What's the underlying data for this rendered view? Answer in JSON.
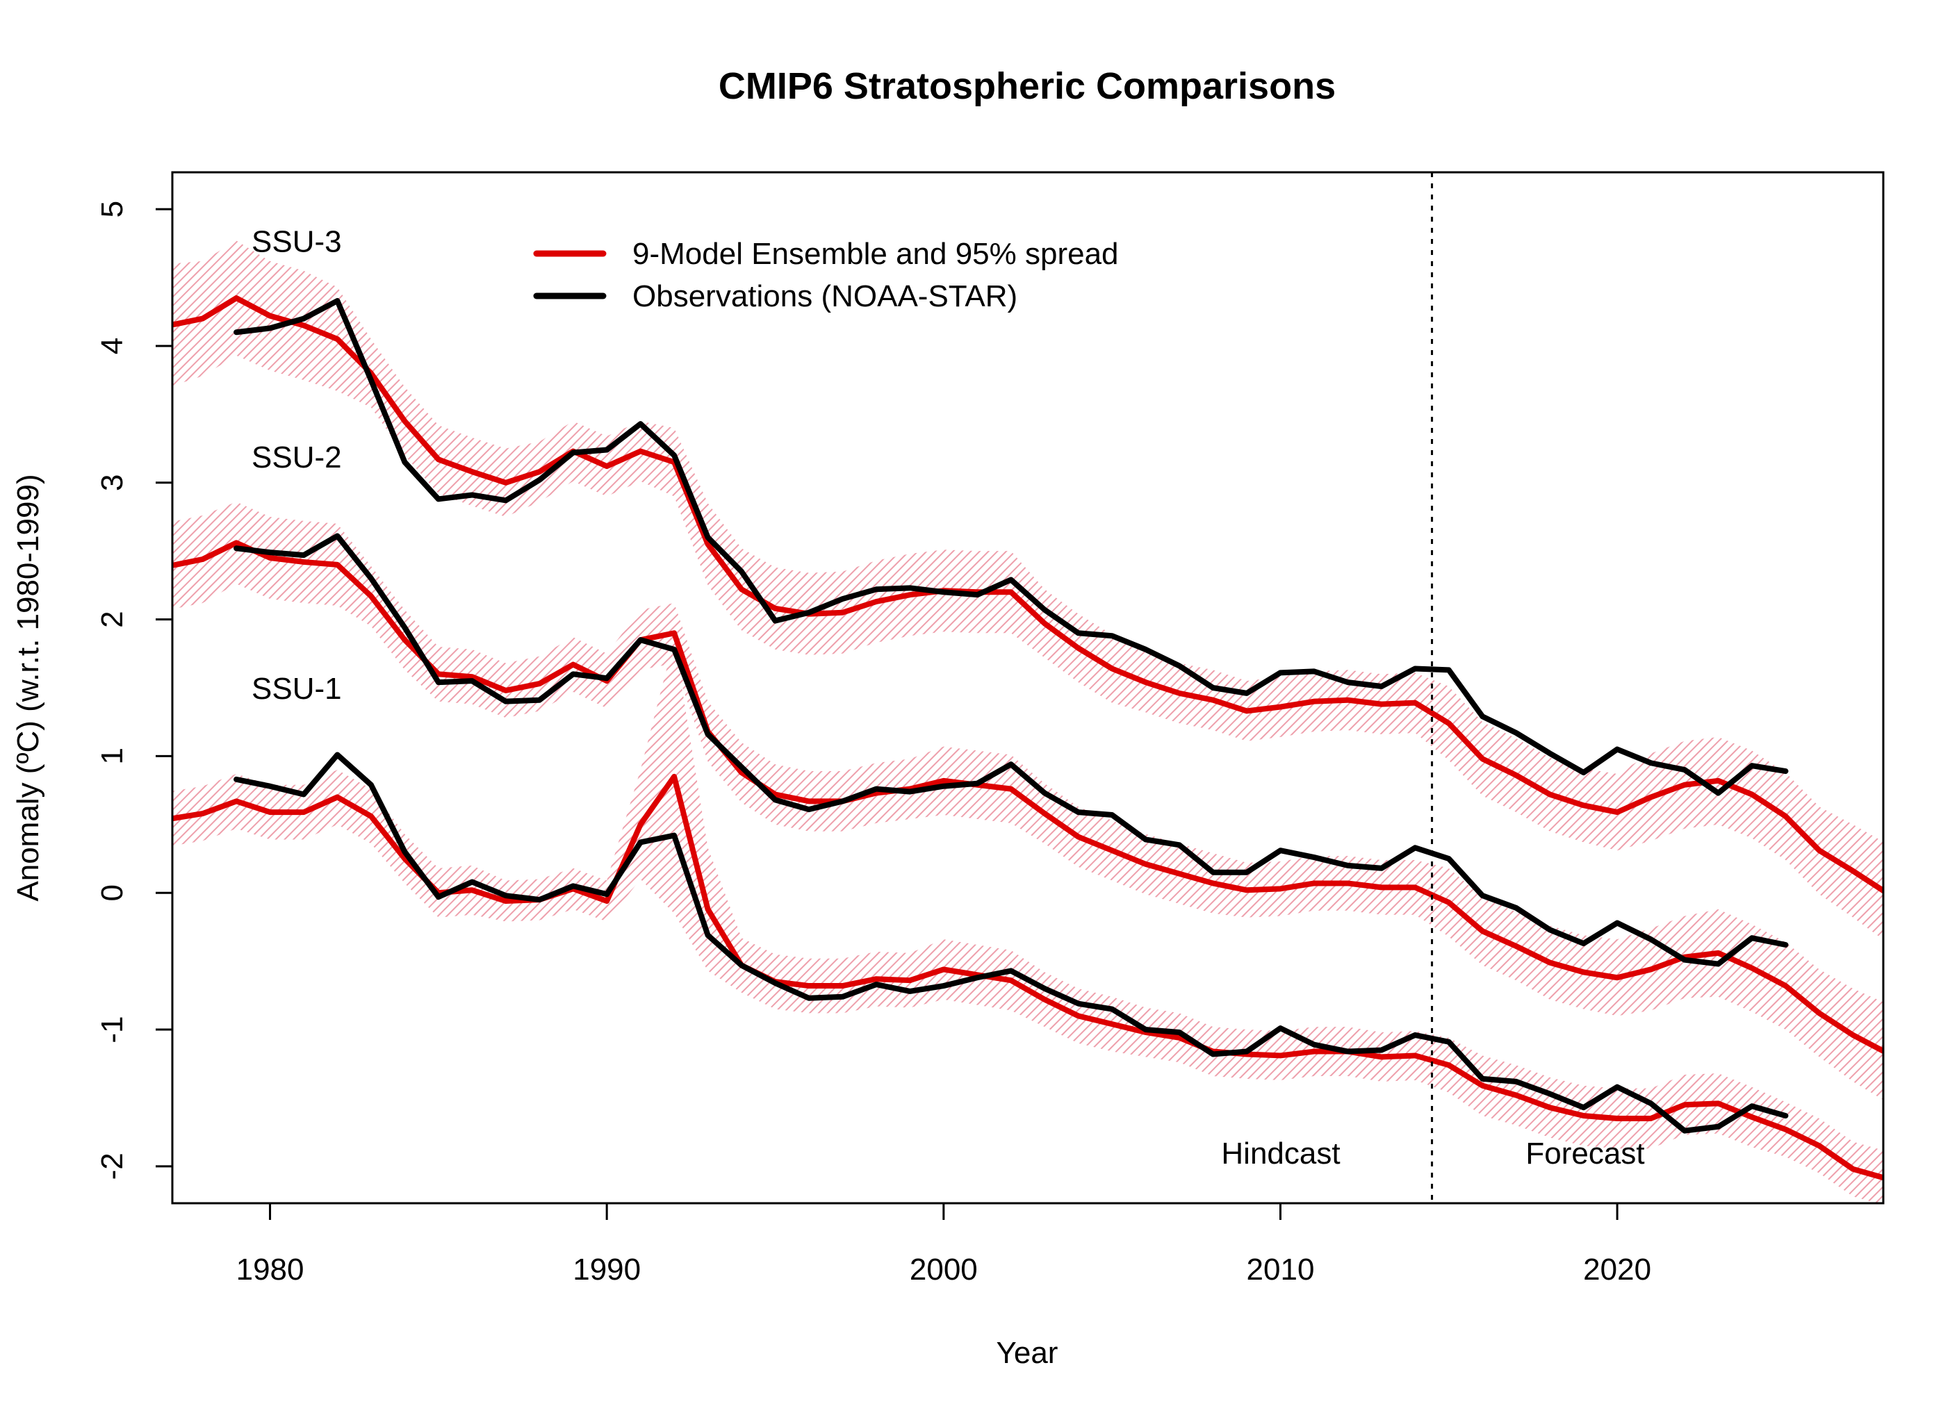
{
  "chart_data": {
    "type": "line",
    "title": "CMIP6 Stratospheric Comparisons",
    "xlabel": "Year",
    "ylabel": "Anomaly (ºC) (w.r.t. 1980-1999)",
    "xlim": [
      1977.1,
      2027.9
    ],
    "ylim": [
      -2.27,
      5.27
    ],
    "x_ticks": [
      1980,
      1990,
      2000,
      2010,
      2020
    ],
    "x_tick_labels": [
      "1980",
      "1990",
      "2000",
      "2010",
      "2020"
    ],
    "y_ticks": [
      -2,
      -1,
      0,
      1,
      2,
      3,
      4,
      5
    ],
    "y_tick_labels": [
      "-2",
      "-1",
      "0",
      "1",
      "2",
      "3",
      "4",
      "5"
    ],
    "grid": false,
    "legend_position": "top-left",
    "legend": [
      {
        "label": "9-Model Ensemble and 95% spread",
        "color": "#dd0000"
      },
      {
        "label": "Observations (NOAA-STAR)",
        "color": "#000000"
      }
    ],
    "colors": {
      "model": "#dd0000",
      "observations": "#000000",
      "spread": "#f2a5b0"
    },
    "divider_year": 2014.5,
    "annotations": {
      "hindcast": "Hindcast",
      "forecast": "Forecast"
    },
    "model_years_start": 1977,
    "obs_years_start": 1979,
    "series": [
      {
        "name": "SSU-3",
        "model": [
          4.15,
          4.2,
          4.35,
          4.22,
          4.15,
          4.05,
          3.8,
          3.45,
          3.17,
          3.08,
          3.0,
          3.08,
          3.23,
          3.12,
          3.23,
          3.15,
          2.55,
          2.22,
          2.08,
          2.04,
          2.05,
          2.13,
          2.18,
          2.21,
          2.2,
          2.2,
          1.97,
          1.79,
          1.64,
          1.54,
          1.46,
          1.41,
          1.33,
          1.36,
          1.4,
          1.41,
          1.38,
          1.39,
          1.24,
          0.98,
          0.86,
          0.72,
          0.64,
          0.59,
          0.7,
          0.79,
          0.82,
          0.72,
          0.56,
          0.31,
          0.16,
          0.0
        ],
        "spread_halfwidth": [
          0.45,
          0.42,
          0.42,
          0.4,
          0.4,
          0.38,
          0.25,
          0.25,
          0.25,
          0.25,
          0.25,
          0.22,
          0.22,
          0.22,
          0.22,
          0.25,
          0.3,
          0.3,
          0.3,
          0.3,
          0.3,
          0.3,
          0.3,
          0.3,
          0.3,
          0.3,
          0.25,
          0.25,
          0.25,
          0.22,
          0.22,
          0.22,
          0.22,
          0.22,
          0.22,
          0.22,
          0.22,
          0.22,
          0.27,
          0.27,
          0.27,
          0.27,
          0.27,
          0.28,
          0.32,
          0.32,
          0.32,
          0.32,
          0.32,
          0.32,
          0.34,
          0.36
        ],
        "observations": [
          4.1,
          4.13,
          4.2,
          4.33,
          3.75,
          3.15,
          2.88,
          2.91,
          2.87,
          3.02,
          3.22,
          3.24,
          3.43,
          3.2,
          2.6,
          2.35,
          1.99,
          2.05,
          2.15,
          2.22,
          2.23,
          2.2,
          2.18,
          2.29,
          2.07,
          1.9,
          1.88,
          1.78,
          1.66,
          1.5,
          1.46,
          1.61,
          1.62,
          1.54,
          1.51,
          1.64,
          1.63,
          1.29,
          1.17,
          1.02,
          0.88,
          1.05,
          0.95,
          0.9,
          0.73,
          0.93,
          0.89
        ]
      },
      {
        "name": "SSU-2",
        "model": [
          2.39,
          2.44,
          2.56,
          2.45,
          2.42,
          2.4,
          2.17,
          1.85,
          1.6,
          1.58,
          1.48,
          1.53,
          1.67,
          1.55,
          1.85,
          1.9,
          1.18,
          0.88,
          0.72,
          0.67,
          0.67,
          0.73,
          0.76,
          0.82,
          0.79,
          0.76,
          0.58,
          0.41,
          0.31,
          0.21,
          0.14,
          0.07,
          0.02,
          0.03,
          0.07,
          0.07,
          0.04,
          0.04,
          -0.07,
          -0.28,
          -0.39,
          -0.51,
          -0.58,
          -0.62,
          -0.56,
          -0.47,
          -0.44,
          -0.55,
          -0.68,
          -0.88,
          -1.04,
          -1.17
        ],
        "spread_halfwidth": [
          0.32,
          0.32,
          0.3,
          0.3,
          0.3,
          0.3,
          0.22,
          0.22,
          0.2,
          0.2,
          0.2,
          0.2,
          0.2,
          0.2,
          0.22,
          0.22,
          0.22,
          0.22,
          0.22,
          0.22,
          0.22,
          0.22,
          0.22,
          0.25,
          0.25,
          0.25,
          0.22,
          0.22,
          0.22,
          0.22,
          0.22,
          0.22,
          0.2,
          0.2,
          0.2,
          0.2,
          0.2,
          0.2,
          0.25,
          0.25,
          0.25,
          0.27,
          0.27,
          0.28,
          0.3,
          0.3,
          0.32,
          0.32,
          0.32,
          0.32,
          0.34,
          0.36
        ],
        "observations": [
          2.52,
          2.49,
          2.47,
          2.61,
          2.3,
          1.94,
          1.54,
          1.55,
          1.4,
          1.41,
          1.6,
          1.57,
          1.85,
          1.78,
          1.16,
          0.92,
          0.68,
          0.61,
          0.67,
          0.76,
          0.74,
          0.78,
          0.8,
          0.94,
          0.73,
          0.59,
          0.57,
          0.39,
          0.35,
          0.15,
          0.15,
          0.31,
          0.26,
          0.2,
          0.18,
          0.33,
          0.25,
          -0.02,
          -0.11,
          -0.27,
          -0.37,
          -0.22,
          -0.34,
          -0.49,
          -0.52,
          -0.33,
          -0.38
        ]
      },
      {
        "name": "SSU-1",
        "model": [
          0.54,
          0.58,
          0.67,
          0.59,
          0.59,
          0.7,
          0.56,
          0.25,
          0.0,
          0.02,
          -0.06,
          -0.05,
          0.03,
          -0.06,
          0.5,
          0.85,
          -0.12,
          -0.53,
          -0.65,
          -0.68,
          -0.68,
          -0.63,
          -0.64,
          -0.56,
          -0.6,
          -0.64,
          -0.78,
          -0.9,
          -0.96,
          -1.02,
          -1.06,
          -1.16,
          -1.18,
          -1.19,
          -1.16,
          -1.16,
          -1.2,
          -1.19,
          -1.26,
          -1.41,
          -1.48,
          -1.57,
          -1.63,
          -1.65,
          -1.65,
          -1.55,
          -1.54,
          -1.64,
          -1.73,
          -1.85,
          -2.02,
          -2.09
        ],
        "spread_halfwidth": [
          0.2,
          0.2,
          0.2,
          0.2,
          0.2,
          0.2,
          0.2,
          0.18,
          0.18,
          0.18,
          0.15,
          0.15,
          0.15,
          0.15,
          0.4,
          1.0,
          0.45,
          0.2,
          0.2,
          0.2,
          0.2,
          0.2,
          0.2,
          0.22,
          0.22,
          0.22,
          0.2,
          0.2,
          0.2,
          0.18,
          0.18,
          0.18,
          0.18,
          0.18,
          0.18,
          0.18,
          0.18,
          0.18,
          0.2,
          0.22,
          0.22,
          0.22,
          0.22,
          0.22,
          0.22,
          0.22,
          0.22,
          0.22,
          0.2,
          0.2,
          0.2,
          0.2
        ],
        "observations": [
          0.83,
          0.78,
          0.72,
          1.01,
          0.79,
          0.3,
          -0.03,
          0.08,
          -0.02,
          -0.05,
          0.05,
          -0.01,
          0.37,
          0.42,
          -0.31,
          -0.53,
          -0.66,
          -0.77,
          -0.76,
          -0.67,
          -0.72,
          -0.68,
          -0.62,
          -0.57,
          -0.7,
          -0.81,
          -0.85,
          -1.0,
          -1.02,
          -1.18,
          -1.16,
          -0.99,
          -1.11,
          -1.16,
          -1.15,
          -1.04,
          -1.09,
          -1.36,
          -1.38,
          -1.47,
          -1.57,
          -1.42,
          -1.54,
          -1.74,
          -1.71,
          -1.56,
          -1.63
        ]
      }
    ]
  }
}
